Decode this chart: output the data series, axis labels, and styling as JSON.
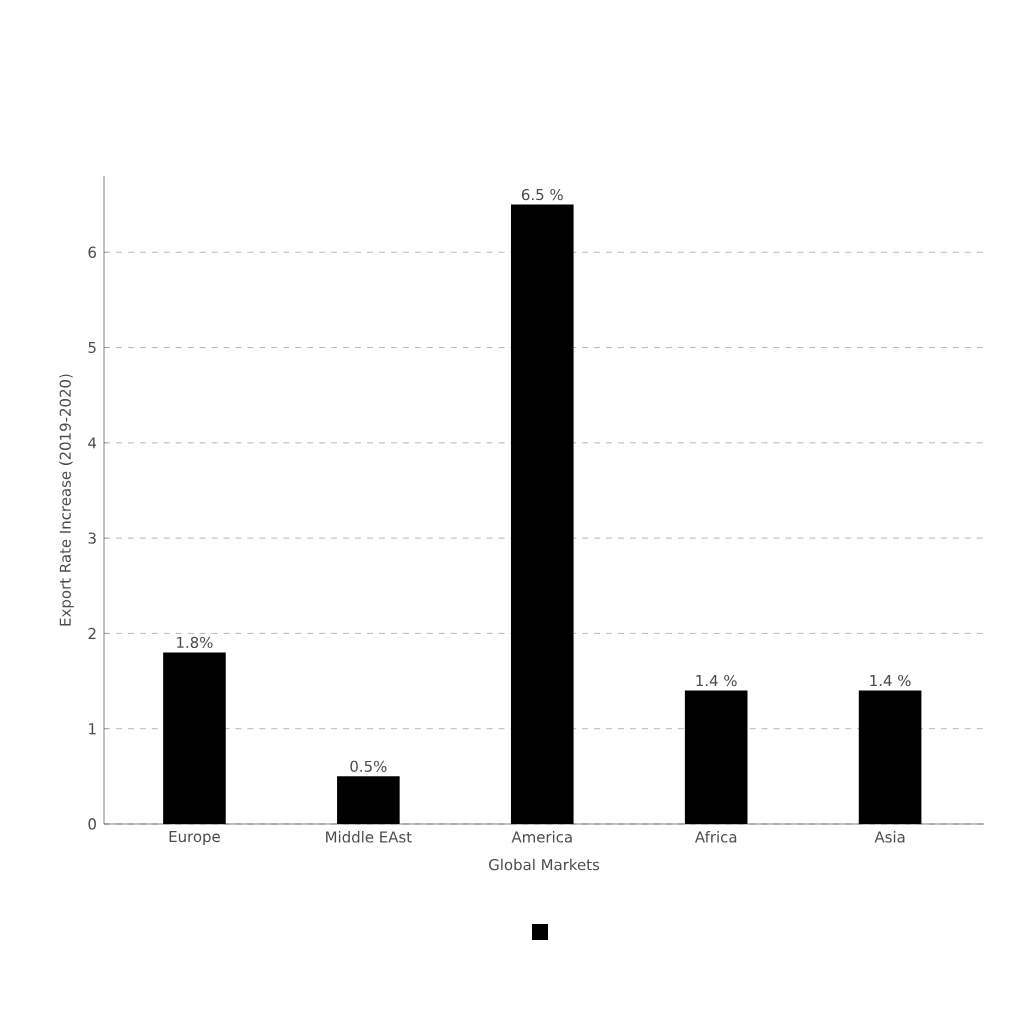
{
  "chart_data": {
    "type": "bar",
    "xlabel": "Global Markets",
    "ylabel": "Export Rate Increase (2019-2020)",
    "categories": [
      "Europe",
      "Middle EAst",
      "America",
      "Africa",
      "Asia"
    ],
    "values": [
      1.8,
      0.5,
      6.5,
      1.4,
      1.4
    ],
    "value_labels": [
      "1.8%",
      "0.5%",
      "6.5 %",
      "1.4 %",
      "1.4 %"
    ],
    "color": "#000000",
    "ylim": [
      0,
      6.8
    ],
    "yticks": [
      0,
      1,
      2,
      3,
      4,
      5,
      6
    ],
    "grid": "y"
  }
}
